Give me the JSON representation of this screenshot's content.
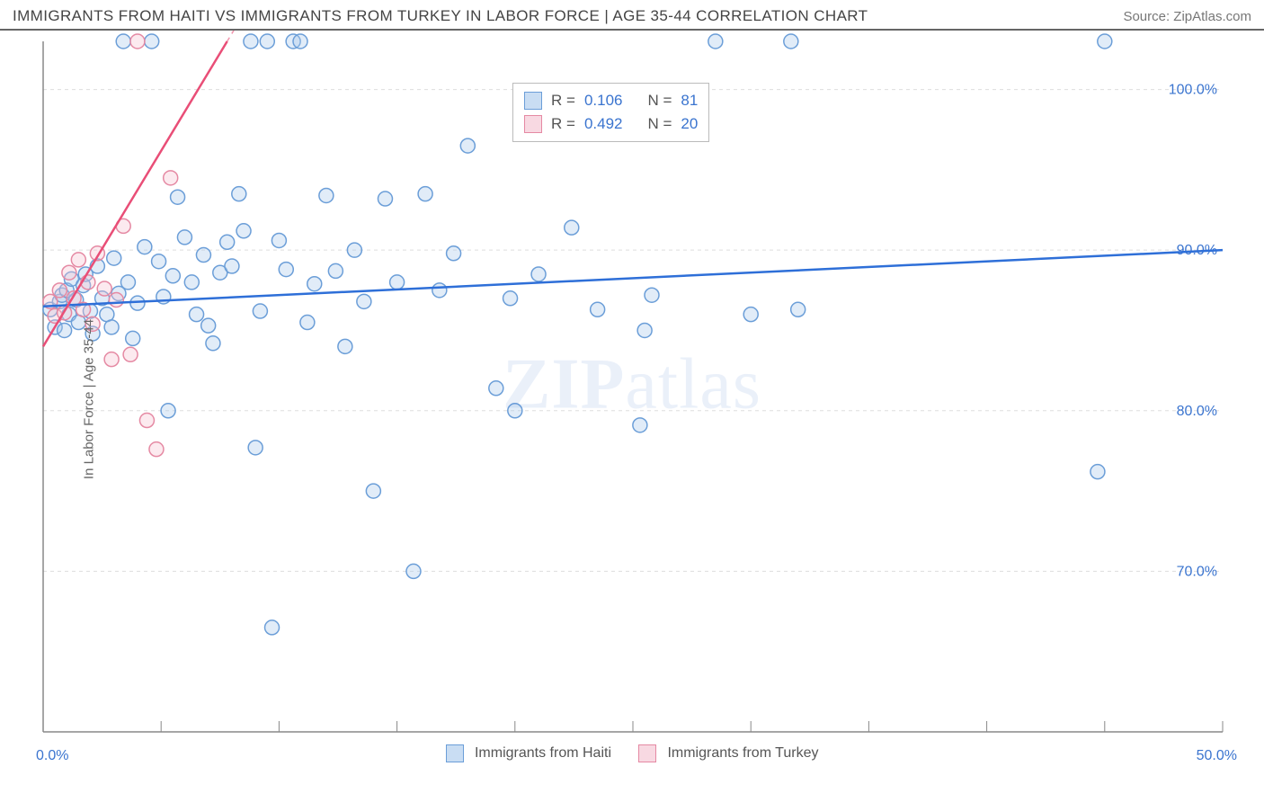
{
  "header": {
    "title": "IMMIGRANTS FROM HAITI VS IMMIGRANTS FROM TURKEY IN LABOR FORCE | AGE 35-44 CORRELATION CHART",
    "source": "Source: ZipAtlas.com"
  },
  "ylabel": "In Labor Force | Age 35-44",
  "watermark": {
    "part1": "ZIP",
    "part2": "atlas"
  },
  "chart": {
    "type": "scatter",
    "xlim": [
      0,
      50
    ],
    "ylim": [
      60,
      103
    ],
    "x_ticks": [
      0,
      50
    ],
    "x_tick_labels": [
      "0.0%",
      "50.0%"
    ],
    "y_ticks": [
      70,
      80,
      90,
      100
    ],
    "y_tick_labels": [
      "70.0%",
      "80.0%",
      "90.0%",
      "100.0%"
    ],
    "x_minor_tick_step": 5,
    "grid_color": "#dddddd",
    "axis_color": "#888888",
    "background_color": "#ffffff",
    "marker_radius": 8,
    "marker_stroke_width": 1.5,
    "marker_fill_opacity": 0.35,
    "series": [
      {
        "name": "Immigrants from Haiti",
        "color_stroke": "#6b9ed8",
        "color_fill": "#a8c8ec",
        "legend_swatch_fill": "#c9ddf3",
        "legend_swatch_stroke": "#6b9ed8",
        "R": "0.106",
        "N": "81",
        "trend": {
          "x1": 0,
          "y1": 86.5,
          "x2": 50,
          "y2": 90.0,
          "color": "#2e6fd8",
          "width": 2.5,
          "dash": "",
          "extend_dash_to_x": null
        },
        "points": [
          [
            0.3,
            86.3
          ],
          [
            0.5,
            85.2
          ],
          [
            0.7,
            86.8
          ],
          [
            0.8,
            87.2
          ],
          [
            0.9,
            85.0
          ],
          [
            1.0,
            87.5
          ],
          [
            1.1,
            86.0
          ],
          [
            1.2,
            88.2
          ],
          [
            1.4,
            86.9
          ],
          [
            1.5,
            85.5
          ],
          [
            1.7,
            87.8
          ],
          [
            1.8,
            88.5
          ],
          [
            2.0,
            86.2
          ],
          [
            2.1,
            84.8
          ],
          [
            2.3,
            89.0
          ],
          [
            2.5,
            87.0
          ],
          [
            2.7,
            86.0
          ],
          [
            2.9,
            85.2
          ],
          [
            3.0,
            89.5
          ],
          [
            3.2,
            87.3
          ],
          [
            3.4,
            103.0
          ],
          [
            3.6,
            88.0
          ],
          [
            3.8,
            84.5
          ],
          [
            4.0,
            86.7
          ],
          [
            4.3,
            90.2
          ],
          [
            4.6,
            103.0
          ],
          [
            4.9,
            89.3
          ],
          [
            5.1,
            87.1
          ],
          [
            5.3,
            80.0
          ],
          [
            5.5,
            88.4
          ],
          [
            5.7,
            93.3
          ],
          [
            6.0,
            90.8
          ],
          [
            6.3,
            88.0
          ],
          [
            6.5,
            86.0
          ],
          [
            6.8,
            89.7
          ],
          [
            7.0,
            85.3
          ],
          [
            7.2,
            84.2
          ],
          [
            7.5,
            88.6
          ],
          [
            7.8,
            90.5
          ],
          [
            8.0,
            89.0
          ],
          [
            8.3,
            93.5
          ],
          [
            8.5,
            91.2
          ],
          [
            8.8,
            103.0
          ],
          [
            9.0,
            77.7
          ],
          [
            9.2,
            86.2
          ],
          [
            9.5,
            103.0
          ],
          [
            9.7,
            66.5
          ],
          [
            10.0,
            90.6
          ],
          [
            10.3,
            88.8
          ],
          [
            10.6,
            103.0
          ],
          [
            10.9,
            103.0
          ],
          [
            11.2,
            85.5
          ],
          [
            11.5,
            87.9
          ],
          [
            12.0,
            93.4
          ],
          [
            12.4,
            88.7
          ],
          [
            12.8,
            84.0
          ],
          [
            13.2,
            90.0
          ],
          [
            13.6,
            86.8
          ],
          [
            14.0,
            75.0
          ],
          [
            14.5,
            93.2
          ],
          [
            15.0,
            88.0
          ],
          [
            15.7,
            70.0
          ],
          [
            16.2,
            93.5
          ],
          [
            16.8,
            87.5
          ],
          [
            17.4,
            89.8
          ],
          [
            18.0,
            96.5
          ],
          [
            19.2,
            81.4
          ],
          [
            19.8,
            87.0
          ],
          [
            20.0,
            80.0
          ],
          [
            21.0,
            88.5
          ],
          [
            22.4,
            91.4
          ],
          [
            23.5,
            86.3
          ],
          [
            25.3,
            79.1
          ],
          [
            25.5,
            85.0
          ],
          [
            25.8,
            87.2
          ],
          [
            28.5,
            103.0
          ],
          [
            30.0,
            86.0
          ],
          [
            31.7,
            103.0
          ],
          [
            32.0,
            86.3
          ],
          [
            44.7,
            76.2
          ],
          [
            45.0,
            103.0
          ]
        ]
      },
      {
        "name": "Immigrants from Turkey",
        "color_stroke": "#e589a3",
        "color_fill": "#f5c3d2",
        "legend_swatch_fill": "#f8d9e2",
        "legend_swatch_stroke": "#e589a3",
        "R": "0.492",
        "N": "20",
        "trend": {
          "x1": 0,
          "y1": 84.0,
          "x2": 7.8,
          "y2": 103.0,
          "color": "#e94e77",
          "width": 2.5,
          "dash": "",
          "extend_dash_to_x": 13.0
        },
        "points": [
          [
            0.3,
            86.8
          ],
          [
            0.5,
            85.9
          ],
          [
            0.7,
            87.5
          ],
          [
            0.9,
            86.1
          ],
          [
            1.1,
            88.6
          ],
          [
            1.3,
            87.0
          ],
          [
            1.5,
            89.4
          ],
          [
            1.7,
            86.3
          ],
          [
            1.9,
            88.0
          ],
          [
            2.1,
            85.4
          ],
          [
            2.3,
            89.8
          ],
          [
            2.6,
            87.6
          ],
          [
            2.9,
            83.2
          ],
          [
            3.1,
            86.9
          ],
          [
            3.4,
            91.5
          ],
          [
            3.7,
            83.5
          ],
          [
            4.0,
            103.0
          ],
          [
            4.4,
            79.4
          ],
          [
            4.8,
            77.6
          ],
          [
            5.4,
            94.5
          ]
        ]
      }
    ]
  },
  "legend_inchart": {
    "labels": {
      "R": "R =",
      "N": "N ="
    }
  },
  "footer_legend": [
    {
      "label": "Immigrants from Haiti",
      "fill": "#c9ddf3",
      "stroke": "#6b9ed8"
    },
    {
      "label": "Immigrants from Turkey",
      "fill": "#f8d9e2",
      "stroke": "#e589a3"
    }
  ]
}
